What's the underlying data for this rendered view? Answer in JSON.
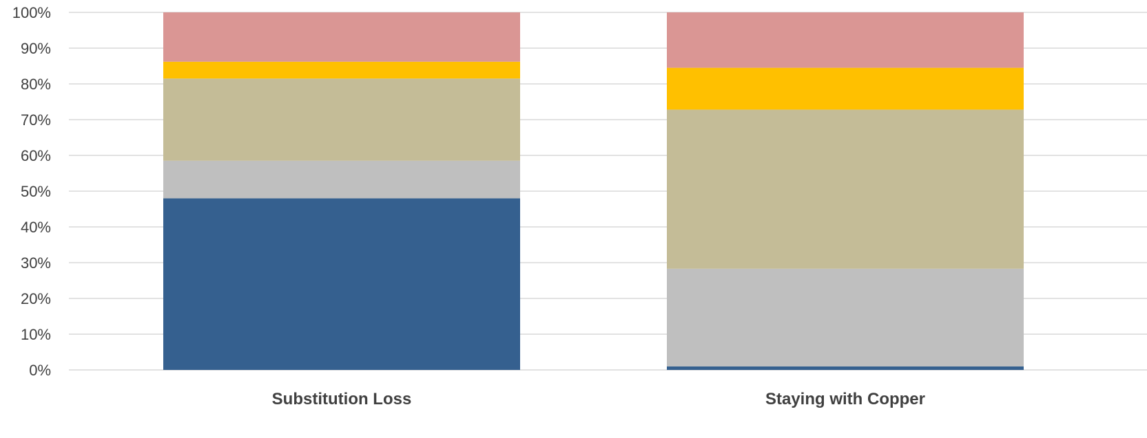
{
  "chart_data": {
    "type": "bar",
    "stacked": true,
    "percent_stacked": true,
    "categories": [
      "Substitution Loss",
      "Staying with Copper"
    ],
    "series": [
      {
        "color": "#35608F",
        "values": [
          48,
          1
        ]
      },
      {
        "color": "#BFBFBF",
        "values": [
          10.5,
          27.3
        ]
      },
      {
        "color": "#C4BC97",
        "values": [
          23,
          44.5
        ]
      },
      {
        "color": "#FFC000",
        "values": [
          4.7,
          11.7
        ]
      },
      {
        "color": "#DA9694",
        "values": [
          13.8,
          15.5
        ]
      }
    ],
    "yticks": [
      "0%",
      "10%",
      "20%",
      "30%",
      "40%",
      "50%",
      "60%",
      "70%",
      "80%",
      "90%",
      "100%"
    ],
    "ylim": [
      0,
      100
    ],
    "grid": true,
    "title": "",
    "xlabel": "",
    "ylabel": ""
  }
}
